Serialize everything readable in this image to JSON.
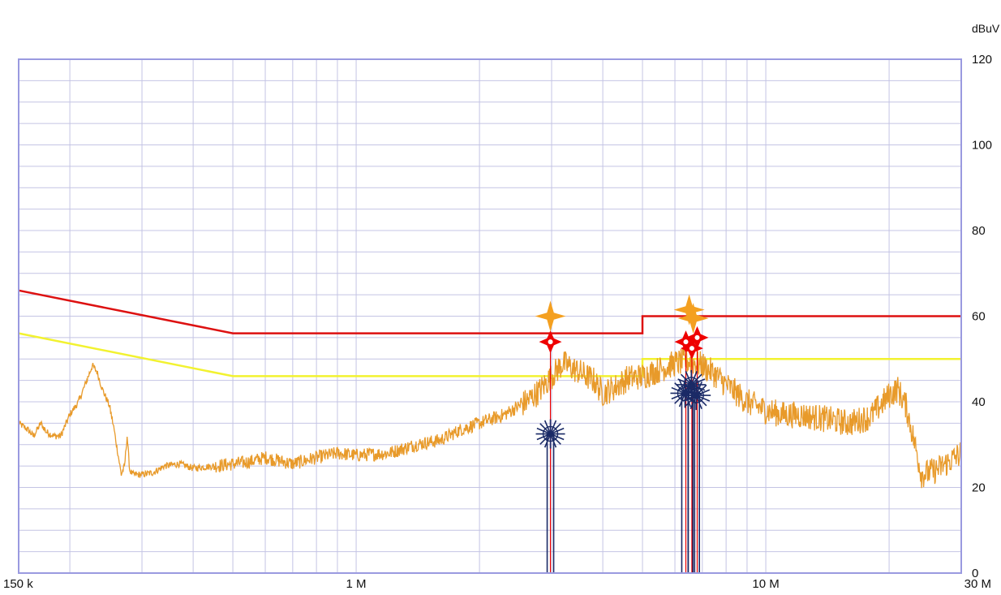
{
  "chart_data": {
    "type": "line",
    "title": "",
    "xlabel": "",
    "ylabel": "dBuV",
    "x_scale": "log",
    "x_unit": "Hz",
    "xlim": [
      150000,
      30000000
    ],
    "ylim": [
      0,
      120
    ],
    "grid": true,
    "legend": "none",
    "x_tick_labels": [
      {
        "value": 150000,
        "label": "150 k"
      },
      {
        "value": 1000000,
        "label": "1 M"
      },
      {
        "value": 10000000,
        "label": "10 M"
      },
      {
        "value": 30000000,
        "label": "30 M"
      }
    ],
    "y_ticks": [
      0,
      20,
      40,
      60,
      80,
      100,
      120
    ],
    "colors": {
      "frame": "#9a9ae0",
      "grid": "#c4c4e4",
      "qp_limit": "#dd1111",
      "avg_limit": "#f2f230",
      "trace": "#e89a2a",
      "qp_marker": "#ee0000",
      "peak_marker": "#f4a020",
      "avg_marker": "#1a2a66"
    },
    "series": [
      {
        "kind": "limit-qp",
        "x": [
          150000,
          500000,
          500000,
          5000000,
          5000000,
          30000000
        ],
        "values": [
          66,
          56,
          56,
          56,
          60,
          60
        ]
      },
      {
        "kind": "limit-avg",
        "x": [
          150000,
          500000,
          500000,
          5000000,
          5000000,
          30000000
        ],
        "values": [
          56,
          46,
          46,
          46,
          50,
          50
        ]
      },
      {
        "kind": "peak-trace",
        "x": [
          150000,
          158000,
          163000,
          170000,
          175000,
          183000,
          190000,
          200000,
          210000,
          220000,
          227000,
          233000,
          240000,
          250000,
          256000,
          262000,
          267000,
          272000,
          276000,
          280000,
          285000,
          290000,
          300000,
          320000,
          340000,
          370000,
          400000,
          450000,
          500000,
          550000,
          600000,
          700000,
          800000,
          900000,
          1000000,
          1200000,
          1400000,
          1600000,
          1800000,
          2000000,
          2300000,
          2600000,
          2800000,
          3000000,
          3200000,
          3500000,
          3800000,
          4000000,
          4300000,
          4600000,
          5000000,
          5500000,
          6000000,
          6500000,
          7000000,
          7500000,
          8000000,
          9000000,
          10000000,
          11000000,
          12000000,
          14000000,
          16000000,
          18000000,
          20000000,
          21000000,
          22000000,
          23000000,
          24000000,
          26000000,
          28000000,
          30000000
        ],
        "values": [
          35,
          33.5,
          32,
          35,
          33,
          32,
          32,
          37,
          40,
          45,
          48.5,
          47,
          43,
          39,
          34,
          28,
          23,
          25,
          32,
          24,
          23,
          23,
          23,
          23.5,
          25,
          25.5,
          24.5,
          25,
          25.5,
          26,
          27,
          25.5,
          27,
          28,
          27.5,
          28,
          30,
          31,
          33.5,
          35,
          37,
          40,
          42.5,
          46,
          49,
          47,
          45,
          42,
          43.5,
          45.5,
          46,
          47.5,
          49,
          49.5,
          48.5,
          46.5,
          44,
          40,
          38,
          37,
          37,
          36,
          35,
          36.5,
          41.5,
          43,
          39,
          31,
          23,
          24,
          26,
          28
        ]
      }
    ],
    "markers": [
      {
        "kind": "qp",
        "symbol": "diamond",
        "x": 2980000,
        "y": 54
      },
      {
        "kind": "peak",
        "symbol": "star",
        "x": 2980000,
        "y": 60
      },
      {
        "kind": "avg",
        "symbol": "asterisk",
        "x": 2980000,
        "y": 32.5
      },
      {
        "kind": "qp",
        "symbol": "diamond",
        "x": 6380000,
        "y": 54
      },
      {
        "kind": "qp",
        "symbol": "diamond",
        "x": 6600000,
        "y": 52.5
      },
      {
        "kind": "qp",
        "symbol": "diamond",
        "x": 6800000,
        "y": 55
      },
      {
        "kind": "peak",
        "symbol": "star",
        "x": 6500000,
        "y": 61.5
      },
      {
        "kind": "peak",
        "symbol": "star",
        "x": 6650000,
        "y": 59.5
      },
      {
        "kind": "avg",
        "symbol": "asterisk",
        "x": 6350000,
        "y": 42
      },
      {
        "kind": "avg",
        "symbol": "asterisk",
        "x": 6580000,
        "y": 44
      },
      {
        "kind": "avg",
        "symbol": "asterisk",
        "x": 6760000,
        "y": 41.5
      }
    ]
  }
}
